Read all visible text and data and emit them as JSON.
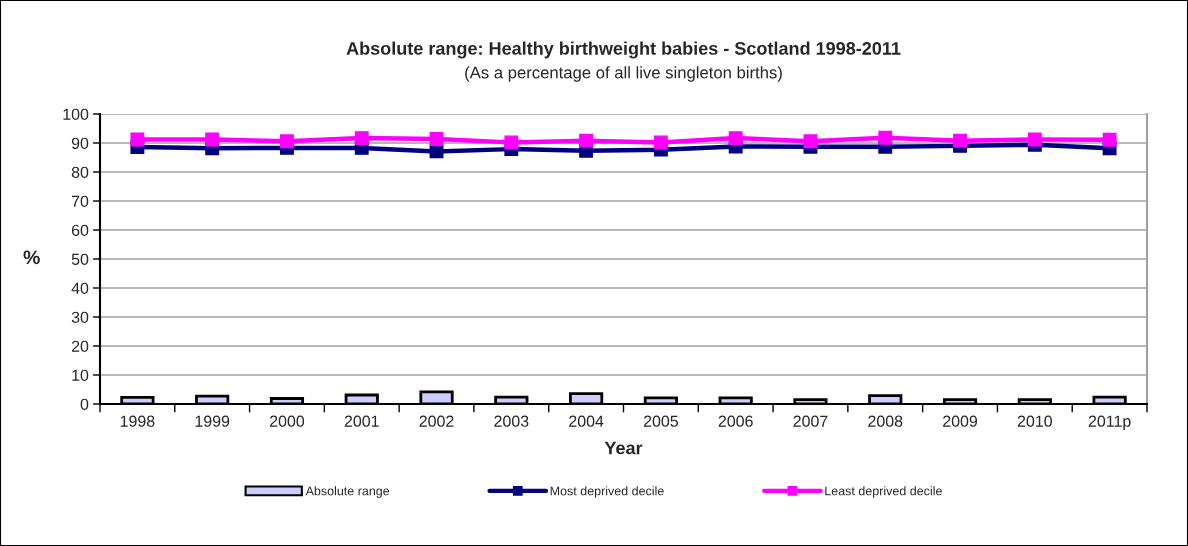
{
  "chart_data": {
    "type": "bar",
    "title": "Absolute range: Healthy birthweight babies - Scotland 1998-2011",
    "subtitle": "(As a percentage of all live singleton births)",
    "xlabel": "Year",
    "ylabel": "%",
    "categories": [
      "1998",
      "1999",
      "2000",
      "2001",
      "2002",
      "2003",
      "2004",
      "2005",
      "2006",
      "2007",
      "2008",
      "2009",
      "2010",
      "2011p"
    ],
    "series": [
      {
        "name": "Absolute range",
        "color": "#ccccff",
        "values": [
          2.3,
          2.7,
          1.9,
          3.1,
          4.2,
          2.4,
          3.6,
          2.1,
          2.1,
          1.5,
          2.9,
          1.5,
          1.5,
          2.4
        ]
      },
      {
        "name": "Most deprived decile",
        "type": "line",
        "color": "#000080",
        "marker": "square",
        "values": [
          88.6,
          88.2,
          88.3,
          88.3,
          87.1,
          87.9,
          87.3,
          87.7,
          88.8,
          88.7,
          88.7,
          89.0,
          89.4,
          88.2
        ]
      },
      {
        "name": "Least deprived decile",
        "type": "line",
        "color": "#ff00ff",
        "marker": "square",
        "values": [
          91.2,
          91.2,
          90.6,
          91.7,
          91.4,
          90.2,
          90.8,
          90.2,
          91.7,
          90.6,
          91.8,
          90.8,
          91.2,
          91.1
        ]
      }
    ],
    "ylim": [
      0,
      100
    ],
    "yticks": [
      0,
      10,
      20,
      30,
      40,
      50,
      60,
      70,
      80,
      90,
      100
    ],
    "grid": "y",
    "legend": "bottom"
  }
}
